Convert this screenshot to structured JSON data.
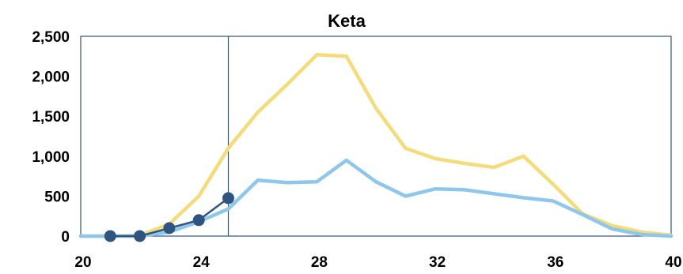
{
  "chart_data": {
    "type": "line",
    "title": "Keta",
    "xlabel": "",
    "ylabel": "",
    "xlim": [
      20,
      40
    ],
    "ylim": [
      0,
      2500
    ],
    "x_ticks": [
      20,
      24,
      28,
      32,
      36,
      40
    ],
    "x_tick_labels": [
      "20",
      "24",
      "28",
      "32",
      "36",
      "40"
    ],
    "y_ticks": [
      0,
      500,
      1000,
      1500,
      2000,
      2500
    ],
    "y_tick_labels": [
      "0",
      "500",
      "1,000",
      "1,500",
      "2,000",
      "2,500"
    ],
    "grid": false,
    "legend": "none",
    "vertical_marker_x": 25,
    "series": [
      {
        "color": "#F5DC7A",
        "markers": false,
        "x": [
          20,
          21,
          22,
          23,
          24,
          25,
          26,
          27,
          28,
          29,
          30,
          31,
          32,
          33,
          34,
          35,
          36,
          37,
          38,
          39,
          40
        ],
        "y": [
          0,
          0,
          10,
          150,
          500,
          1100,
          1550,
          1900,
          2270,
          2250,
          1600,
          1100,
          970,
          910,
          860,
          1000,
          650,
          280,
          130,
          50,
          10
        ]
      },
      {
        "color": "#8EC6EC",
        "markers": false,
        "x": [
          20,
          21,
          22,
          23,
          24,
          25,
          26,
          27,
          28,
          29,
          30,
          31,
          32,
          33,
          34,
          35,
          36,
          37,
          38,
          39,
          40
        ],
        "y": [
          0,
          0,
          0,
          50,
          180,
          340,
          700,
          670,
          680,
          950,
          680,
          500,
          590,
          580,
          530,
          480,
          440,
          270,
          90,
          20,
          0
        ]
      },
      {
        "color": "#2F5480",
        "markers": true,
        "x": [
          21,
          22,
          23,
          24,
          25
        ],
        "y": [
          0,
          0,
          100,
          200,
          475
        ]
      }
    ]
  }
}
